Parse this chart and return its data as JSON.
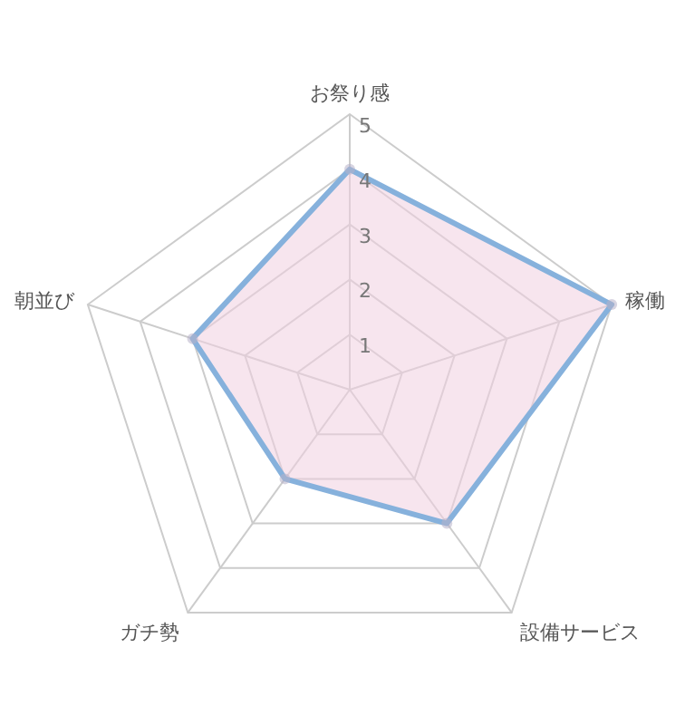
{
  "chart_data": {
    "type": "radar",
    "categories": [
      "お祭り感",
      "稼働",
      "設備サービス",
      "ガチ勢",
      "朝並び"
    ],
    "series": [
      {
        "color": "#86b1dc",
        "values": [
          4,
          5,
          3,
          2,
          3
        ]
      }
    ],
    "ylim": [
      0,
      5
    ],
    "yticks": [
      1,
      2,
      3,
      4,
      5
    ],
    "marker": "circle",
    "grid": true
  }
}
